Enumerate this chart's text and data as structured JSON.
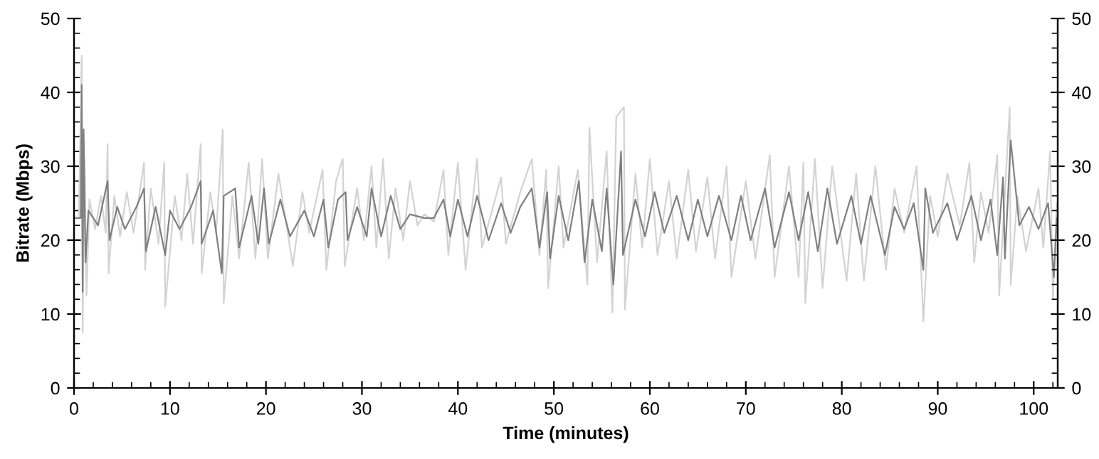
{
  "chart_data": {
    "type": "line",
    "xlabel": "Time (minutes)",
    "ylabel": "Bitrate (Mbps)",
    "xlim": [
      0,
      102.5
    ],
    "xticks": [
      0,
      10,
      20,
      30,
      40,
      50,
      60,
      70,
      80,
      90,
      100
    ],
    "ylim": [
      0,
      50
    ],
    "yticks": [
      0,
      10,
      20,
      30,
      40,
      50
    ],
    "y2lim": [
      0,
      50
    ],
    "y2ticks": [
      0,
      10,
      20,
      30,
      40,
      50
    ],
    "grid": false,
    "legend": false,
    "marker": "none",
    "line_style": "solid",
    "series": [
      {
        "color": "#d3d3d3",
        "x": [
          0,
          0.5,
          0.8,
          0.9,
          1.1,
          1.3,
          1.6,
          2.2,
          2.8,
          3.3,
          3.5,
          3.6,
          4.2,
          4.8,
          5.5,
          6.2,
          7.3,
          7.4,
          8,
          8.8,
          9.4,
          9.5,
          10.5,
          11.2,
          11.8,
          12.4,
          13.2,
          13.3,
          14.2,
          14.8,
          15.5,
          15.6,
          16.5,
          17.2,
          18.2,
          18.9,
          19.6,
          20.2,
          21.3,
          22.8,
          23.8,
          24.5,
          25.9,
          26.3,
          27.3,
          28,
          28.2,
          29.5,
          30.2,
          31,
          31.5,
          32.2,
          32.8,
          33.5,
          34.3,
          35,
          35.8,
          36.5,
          37.5,
          38.5,
          39,
          40,
          40.8,
          42,
          42.5,
          44.5,
          45,
          46.5,
          47.7,
          48.5,
          49.2,
          49.4,
          50.5,
          51,
          52.5,
          53.5,
          53.7,
          54.5,
          55.5,
          56.1,
          56.5,
          57.3,
          57.4,
          58.5,
          59.2,
          60,
          60.8,
          62,
          62.8,
          64,
          64.8,
          66,
          66.8,
          68,
          68.5,
          70,
          71,
          72.5,
          73,
          74.5,
          75.5,
          76,
          76.2,
          77.2,
          78,
          79,
          80.5,
          81.5,
          82.3,
          83.5,
          84.6,
          85.5,
          86.5,
          87.8,
          88.5,
          89.2,
          90,
          91,
          92.3,
          93.3,
          93.8,
          94.5,
          95.3,
          96.2,
          96.4,
          97.5,
          97.6,
          98.3,
          99.2,
          100.5,
          101,
          101.7,
          102,
          102.4
        ],
        "values": [
          23,
          23,
          45,
          7.5,
          31,
          12.5,
          25.5,
          21.5,
          26,
          21,
          33,
          15.5,
          26,
          20.5,
          26.5,
          21,
          30.5,
          16,
          27,
          19.5,
          30.5,
          11,
          26,
          20,
          29,
          19.5,
          33,
          15.5,
          26.5,
          21,
          35,
          11.5,
          26,
          17.5,
          30.5,
          17.5,
          31,
          17.5,
          29,
          16.5,
          26.5,
          21,
          29.5,
          16,
          28,
          31,
          16.5,
          27,
          20,
          30,
          19,
          31,
          17.5,
          27,
          20,
          28,
          22,
          23.5,
          22.5,
          29.5,
          18,
          30.5,
          16,
          31,
          19,
          28.5,
          19.5,
          26.5,
          31,
          18,
          29.5,
          13.5,
          30,
          19,
          29.5,
          14,
          35.2,
          17,
          32,
          10.2,
          36.7,
          38,
          10.6,
          29,
          19,
          31,
          18,
          28,
          17.5,
          29.5,
          18.5,
          28.5,
          17.5,
          30,
          15,
          28,
          17.5,
          31.5,
          15,
          30,
          15,
          30.5,
          11.5,
          31,
          13.5,
          30,
          14.5,
          29,
          14.5,
          30,
          16,
          27,
          21,
          30,
          9,
          26,
          20.5,
          29,
          22,
          30.5,
          17,
          26.5,
          21,
          31.5,
          12.5,
          38,
          14,
          26,
          18.5,
          27,
          19,
          32,
          12,
          25
        ]
      },
      {
        "color": "#808080",
        "x": [
          0,
          0.7,
          0.8,
          0.9,
          1.0,
          1.2,
          1.5,
          2.5,
          3.5,
          3.7,
          4.5,
          5.3,
          6.5,
          7.3,
          7.5,
          8.5,
          9.5,
          10,
          11,
          12.2,
          13.2,
          13.3,
          14.5,
          15.4,
          15.6,
          16.8,
          17.2,
          18.5,
          19.2,
          19.8,
          20.3,
          21.5,
          22.5,
          24,
          25,
          26,
          26.5,
          27.5,
          28.3,
          28.5,
          29.5,
          30.5,
          31,
          32,
          33,
          34,
          35,
          36.5,
          37.5,
          38.5,
          39.2,
          40,
          41,
          42,
          43.2,
          44.5,
          45.5,
          46.5,
          47.7,
          48.5,
          49.3,
          49.6,
          50.5,
          51.5,
          52.6,
          53.2,
          54,
          55,
          55.5,
          56.2,
          57,
          57.2,
          58.5,
          59.5,
          60.5,
          61.5,
          62.8,
          64,
          65,
          66,
          67.2,
          68.5,
          69.5,
          70.5,
          72,
          73,
          74.5,
          75.5,
          76.5,
          77.5,
          78.5,
          79.5,
          81,
          82,
          83,
          84.5,
          85.5,
          86.5,
          87.5,
          88.5,
          88.7,
          89.5,
          91,
          92,
          93.5,
          94.5,
          95.5,
          96.2,
          96.8,
          97,
          97.6,
          98.5,
          99.5,
          100.5,
          101.5,
          102.1,
          102.4
        ],
        "values": [
          23,
          23,
          41,
          13,
          35,
          17,
          24,
          22,
          28,
          20,
          24.5,
          21.5,
          24.5,
          27,
          18.5,
          24.5,
          18,
          24,
          21.5,
          24.5,
          28,
          19.5,
          24,
          15.5,
          26,
          27,
          19,
          26,
          19.5,
          27,
          19.5,
          25.5,
          20.5,
          24,
          20.5,
          25.5,
          19,
          25.5,
          26.5,
          20,
          24.5,
          20.5,
          27,
          20.5,
          26,
          21.5,
          23.5,
          23,
          23,
          25.5,
          20.5,
          25.5,
          20.5,
          26,
          20,
          25,
          21,
          24.5,
          27,
          19,
          26.5,
          17.5,
          26,
          20,
          28,
          17,
          25.5,
          18.5,
          27,
          14,
          32,
          18,
          25.5,
          20.5,
          26.5,
          21,
          26,
          20,
          25.5,
          20.5,
          26,
          20,
          26,
          20,
          27,
          19,
          26.5,
          20,
          26.5,
          18.5,
          27,
          19.5,
          26,
          19.5,
          26,
          18,
          24.5,
          21.5,
          25,
          16,
          27,
          21,
          25,
          20,
          26,
          20,
          25.5,
          18,
          28.5,
          17.5,
          33.5,
          22,
          24.5,
          21.5,
          25,
          15,
          23
        ]
      }
    ]
  }
}
